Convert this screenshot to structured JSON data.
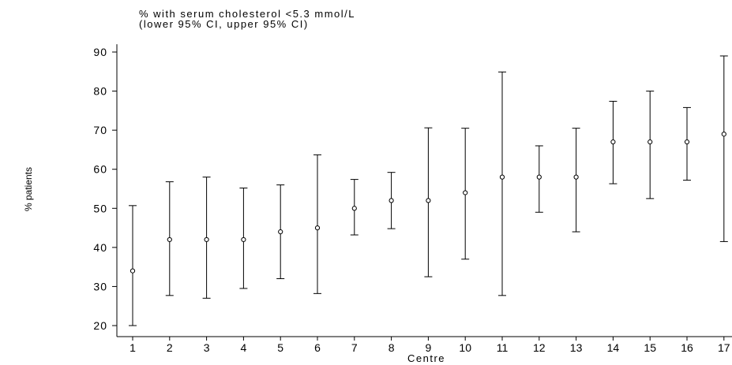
{
  "chart_data": {
    "type": "scatter",
    "title": "% with serum cholesterol <5.3 mmol/L",
    "subtitle": "(lower 95% CI, upper 95% CI)",
    "xlabel": "Centre",
    "ylabel": "% patients",
    "categories": [
      "1",
      "2",
      "3",
      "4",
      "5",
      "6",
      "7",
      "8",
      "9",
      "10",
      "11",
      "12",
      "13",
      "14",
      "15",
      "16",
      "17"
    ],
    "values": [
      34,
      42,
      42,
      42,
      44,
      45,
      50,
      52,
      52,
      54,
      58,
      58,
      58,
      67,
      67,
      67,
      69
    ],
    "lower": [
      20,
      27.7,
      27,
      29.5,
      32,
      28.2,
      43.2,
      44.8,
      32.5,
      37,
      27.7,
      49,
      44,
      56.3,
      52.5,
      57.2,
      41.5
    ],
    "upper": [
      50.7,
      56.8,
      58,
      55.2,
      56,
      63.7,
      57.4,
      59.2,
      70.6,
      70.5,
      84.9,
      66,
      70.5,
      77.4,
      80,
      75.8,
      89
    ],
    "yticks": [
      20,
      30,
      40,
      50,
      60,
      70,
      80,
      90
    ],
    "ylim": [
      18,
      92
    ],
    "grid": false,
    "colors": {
      "marks": "#000000",
      "background": "#ffffff"
    }
  }
}
